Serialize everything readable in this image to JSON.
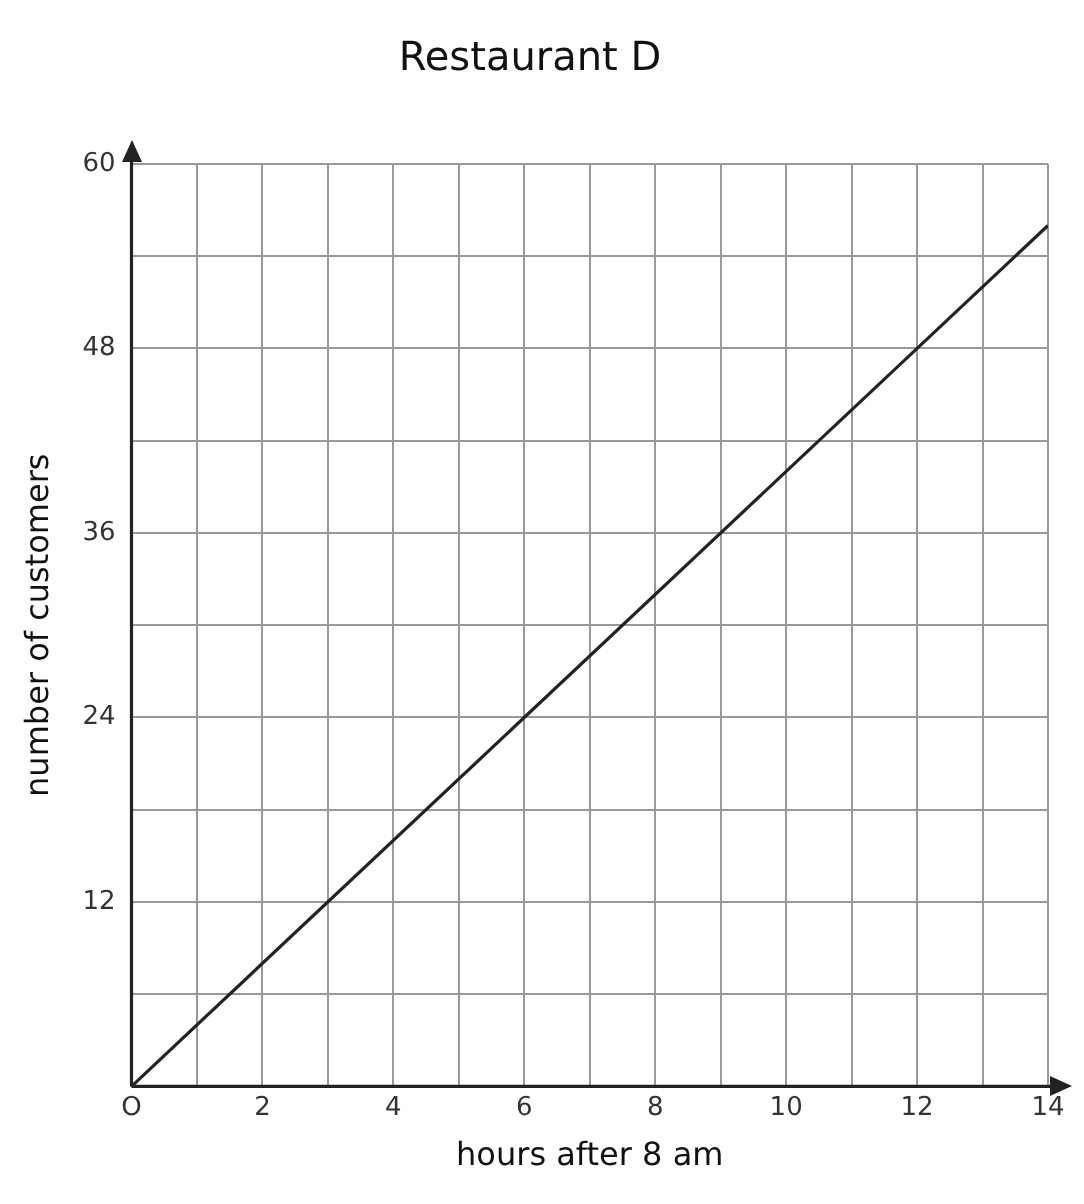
{
  "chart_data": {
    "type": "line",
    "title": "Restaurant D",
    "xlabel": "hours after 8 am",
    "ylabel": "number of customers",
    "x": [
      0,
      14
    ],
    "series": [
      {
        "color": "#222222",
        "values": [
          0,
          56
        ]
      }
    ],
    "xlim": [
      0,
      14
    ],
    "ylim": [
      0,
      60
    ],
    "xticks": [
      {
        "value": 0,
        "label": "O"
      },
      {
        "value": 1,
        "label": null
      },
      2,
      {
        "value": 3,
        "label": null
      },
      4,
      {
        "value": 5,
        "label": null
      },
      6,
      {
        "value": 7,
        "label": null
      },
      8,
      {
        "value": 9,
        "label": null
      },
      10,
      {
        "value": 11,
        "label": null
      },
      12,
      {
        "value": 13,
        "label": null
      },
      14
    ],
    "yticks": [
      {
        "value": 0,
        "label": null
      },
      {
        "value": 6,
        "label": null
      },
      12,
      {
        "value": 18,
        "label": null
      },
      24,
      {
        "value": 30,
        "label": null
      },
      36,
      {
        "value": 42,
        "label": null
      },
      48,
      {
        "value": 54,
        "label": null
      },
      60
    ],
    "grid": true,
    "legend": false,
    "marker": "none",
    "line_style": "solid"
  }
}
